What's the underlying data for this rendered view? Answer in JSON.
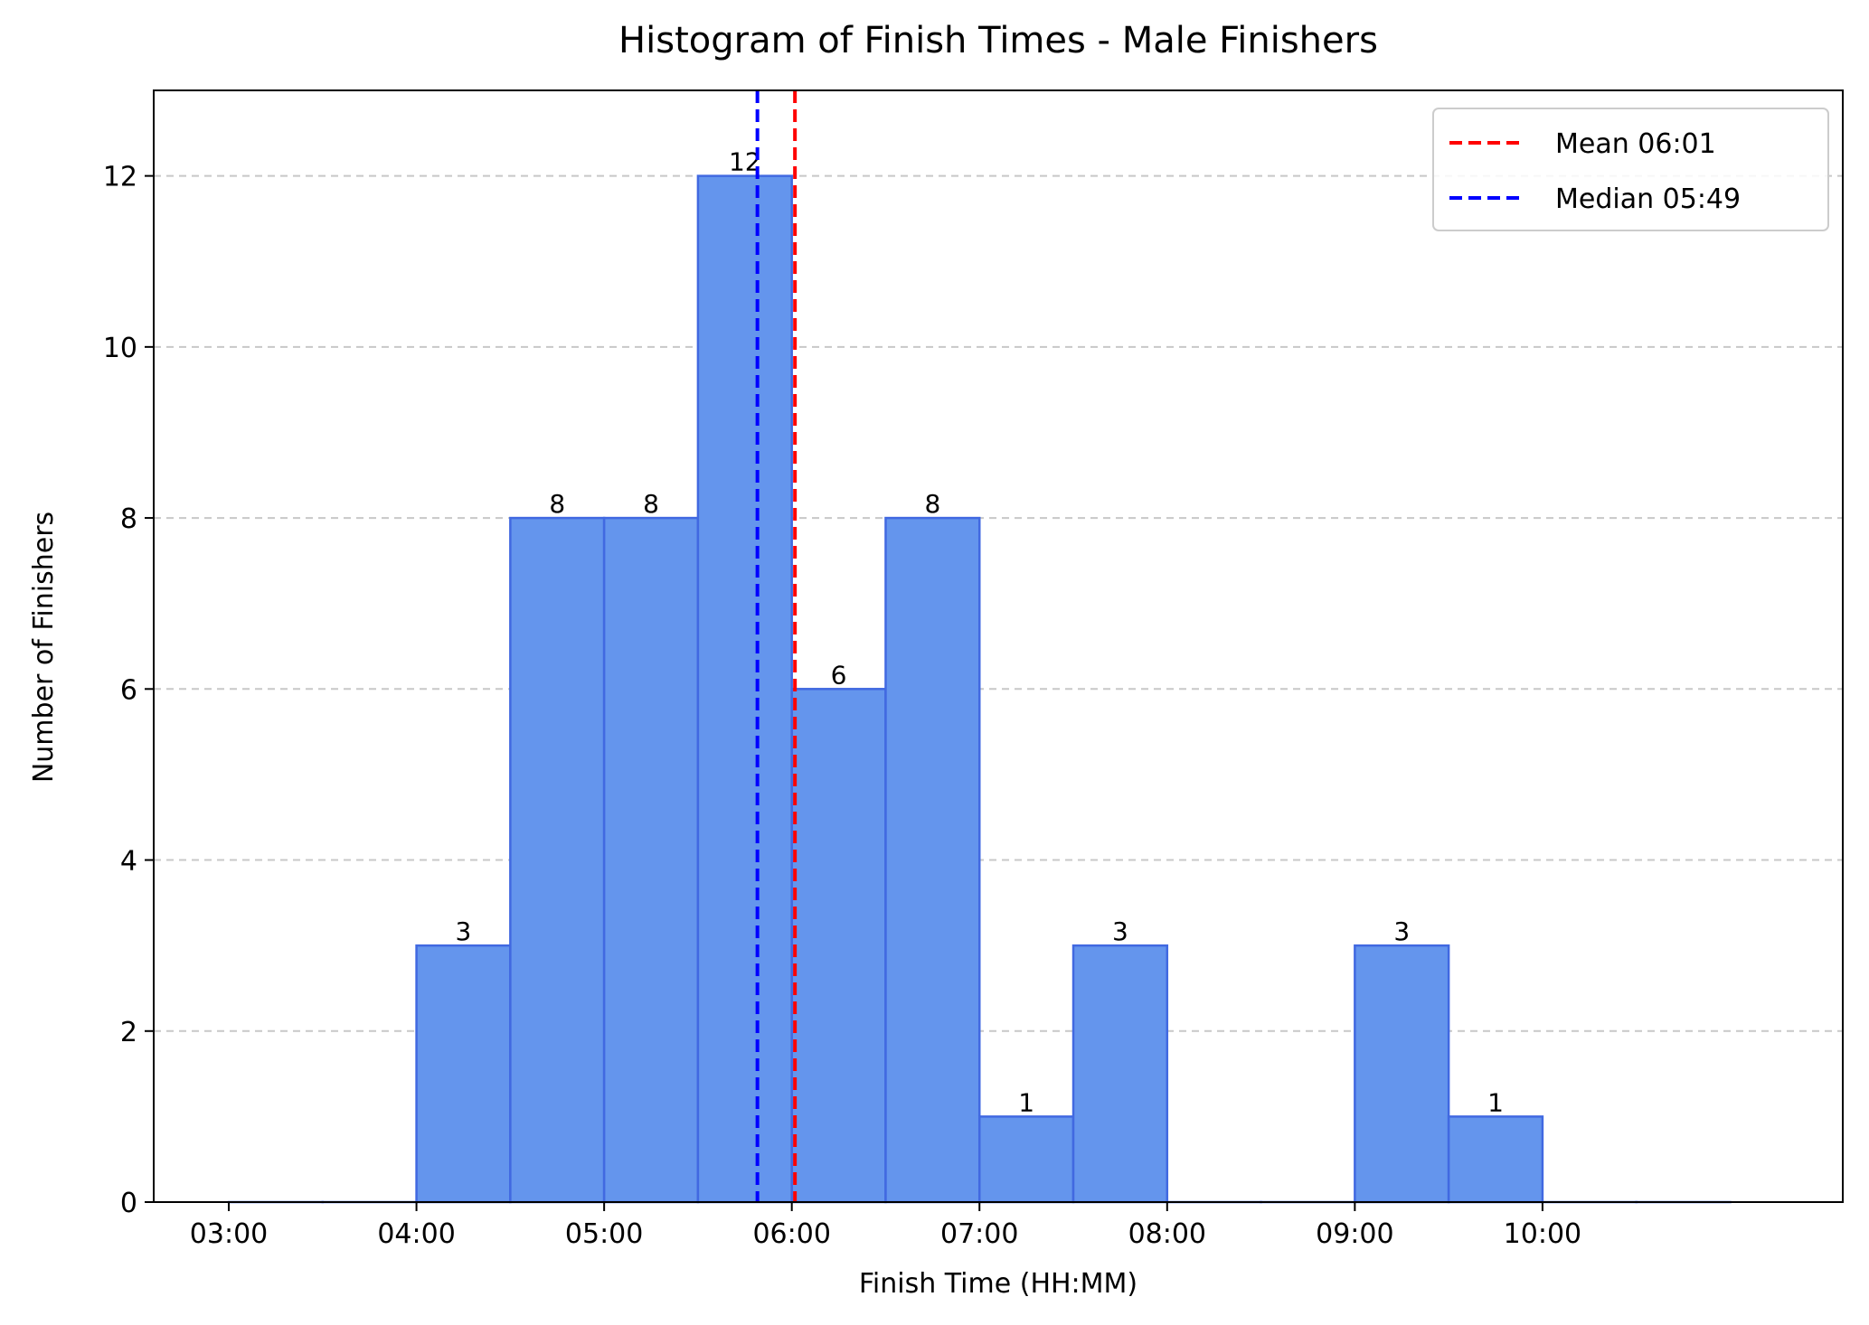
{
  "chart_data": {
    "type": "bar",
    "title": "Histogram of Finish Times - Male Finishers",
    "xlabel": "Finish Time (HH:MM)",
    "ylabel": "Number of Finishers",
    "x_unit": "hours",
    "xlim": [
      2.6,
      11.6
    ],
    "ylim": [
      0,
      13
    ],
    "x_ticks": [
      {
        "value": 3,
        "label": "03:00"
      },
      {
        "value": 4,
        "label": "04:00"
      },
      {
        "value": 5,
        "label": "05:00"
      },
      {
        "value": 6,
        "label": "06:00"
      },
      {
        "value": 7,
        "label": "07:00"
      },
      {
        "value": 8,
        "label": "08:00"
      },
      {
        "value": 9,
        "label": "09:00"
      },
      {
        "value": 10,
        "label": "10:00"
      }
    ],
    "y_ticks": [
      0,
      2,
      4,
      6,
      8,
      10,
      12
    ],
    "bin_edges": [
      3.0,
      3.5,
      4.0,
      4.5,
      5.0,
      5.5,
      6.0,
      6.5,
      7.0,
      7.5,
      8.0,
      8.5,
      9.0,
      9.5,
      10.0,
      10.5,
      11.0
    ],
    "counts": [
      0,
      0,
      3,
      8,
      8,
      12,
      6,
      8,
      1,
      3,
      0,
      0,
      3,
      1,
      0,
      0
    ],
    "bar_color": "#6495ED",
    "bar_edge_color": "#4169E1",
    "grid": {
      "axis": "y",
      "style": "dashed",
      "color": "#c8c8c8"
    },
    "reference_lines": [
      {
        "label": "Mean 06:01",
        "value": 6.0167,
        "color": "#ff0000",
        "style": "dashed"
      },
      {
        "label": "Median 05:49",
        "value": 5.8167,
        "color": "#0000ff",
        "style": "dashed"
      }
    ],
    "legend": {
      "position": "top-right"
    }
  }
}
